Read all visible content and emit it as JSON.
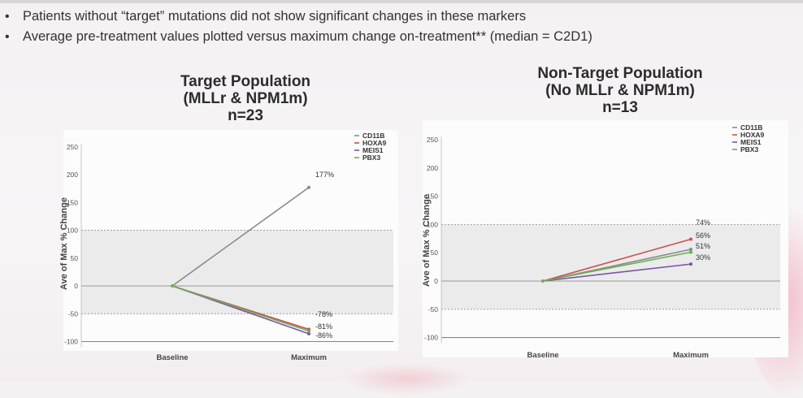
{
  "bullets": [
    "Patients without “target” mutations did not show significant changes in these markers",
    "Average pre-treatment values plotted versus maximum change on-treatment** (median = C2D1)"
  ],
  "colors": {
    "CD11B": "#8a8a8a",
    "HOXA9": "#c9524c",
    "MEIS1": "#7b52a5",
    "PBX3": "#6cae52"
  },
  "chart_data": [
    {
      "type": "line",
      "title": [
        "Target Population",
        "(MLLr & NPM1m)",
        "n=23"
      ],
      "xlabel": "",
      "ylabel": "Ave of Max % Change",
      "categories": [
        "Baseline",
        "Maximum"
      ],
      "yticks": [
        "250",
        "200",
        "150",
        "100",
        "50",
        "0",
        "-50",
        "-100"
      ],
      "ytick_values": [
        250,
        200,
        150,
        100,
        50,
        0,
        -50,
        -100
      ],
      "ylim": [
        -110,
        255
      ],
      "reference_lines": [
        100,
        0,
        -50,
        -100
      ],
      "legend": [
        "CD11B",
        "HOXA9",
        "MEIS1",
        "PBX3"
      ],
      "series": [
        {
          "name": "CD11B",
          "values": [
            0,
            177
          ]
        },
        {
          "name": "HOXA9",
          "values": [
            0,
            -78
          ]
        },
        {
          "name": "MEIS1",
          "values": [
            0,
            -86
          ]
        },
        {
          "name": "PBX3",
          "values": [
            0,
            -81
          ]
        }
      ],
      "data_labels": [
        {
          "text": "177%",
          "value": 177
        },
        {
          "text": "-78%",
          "value": -78
        },
        {
          "text": "-81%",
          "value": -81
        },
        {
          "text": "-86%",
          "value": -86
        }
      ]
    },
    {
      "type": "line",
      "title": [
        "Non-Target Population",
        "(No MLLr & NPM1m)",
        "n=13"
      ],
      "xlabel": "",
      "ylabel": "Ave of Max % Change",
      "categories": [
        "Baseline",
        "Maximum"
      ],
      "yticks": [
        "250",
        "200",
        "150",
        "100",
        "50",
        "0",
        "-50",
        "-100"
      ],
      "ytick_values": [
        250,
        200,
        150,
        100,
        50,
        0,
        -50,
        -100
      ],
      "ylim": [
        -110,
        255
      ],
      "reference_lines": [
        100,
        0,
        -50,
        -100
      ],
      "legend": [
        "CD11B",
        "HOXA9",
        "MEIS1",
        "PBX3"
      ],
      "series": [
        {
          "name": "CD11B",
          "values": [
            0,
            56
          ]
        },
        {
          "name": "HOXA9",
          "values": [
            0,
            74
          ]
        },
        {
          "name": "MEIS1",
          "values": [
            0,
            30
          ]
        },
        {
          "name": "PBX3",
          "values": [
            0,
            51
          ]
        }
      ],
      "data_labels": [
        {
          "text": "74%",
          "value": 74
        },
        {
          "text": "56%",
          "value": 56
        },
        {
          "text": "51%",
          "value": 51
        },
        {
          "text": "30%",
          "value": 30
        }
      ]
    }
  ]
}
